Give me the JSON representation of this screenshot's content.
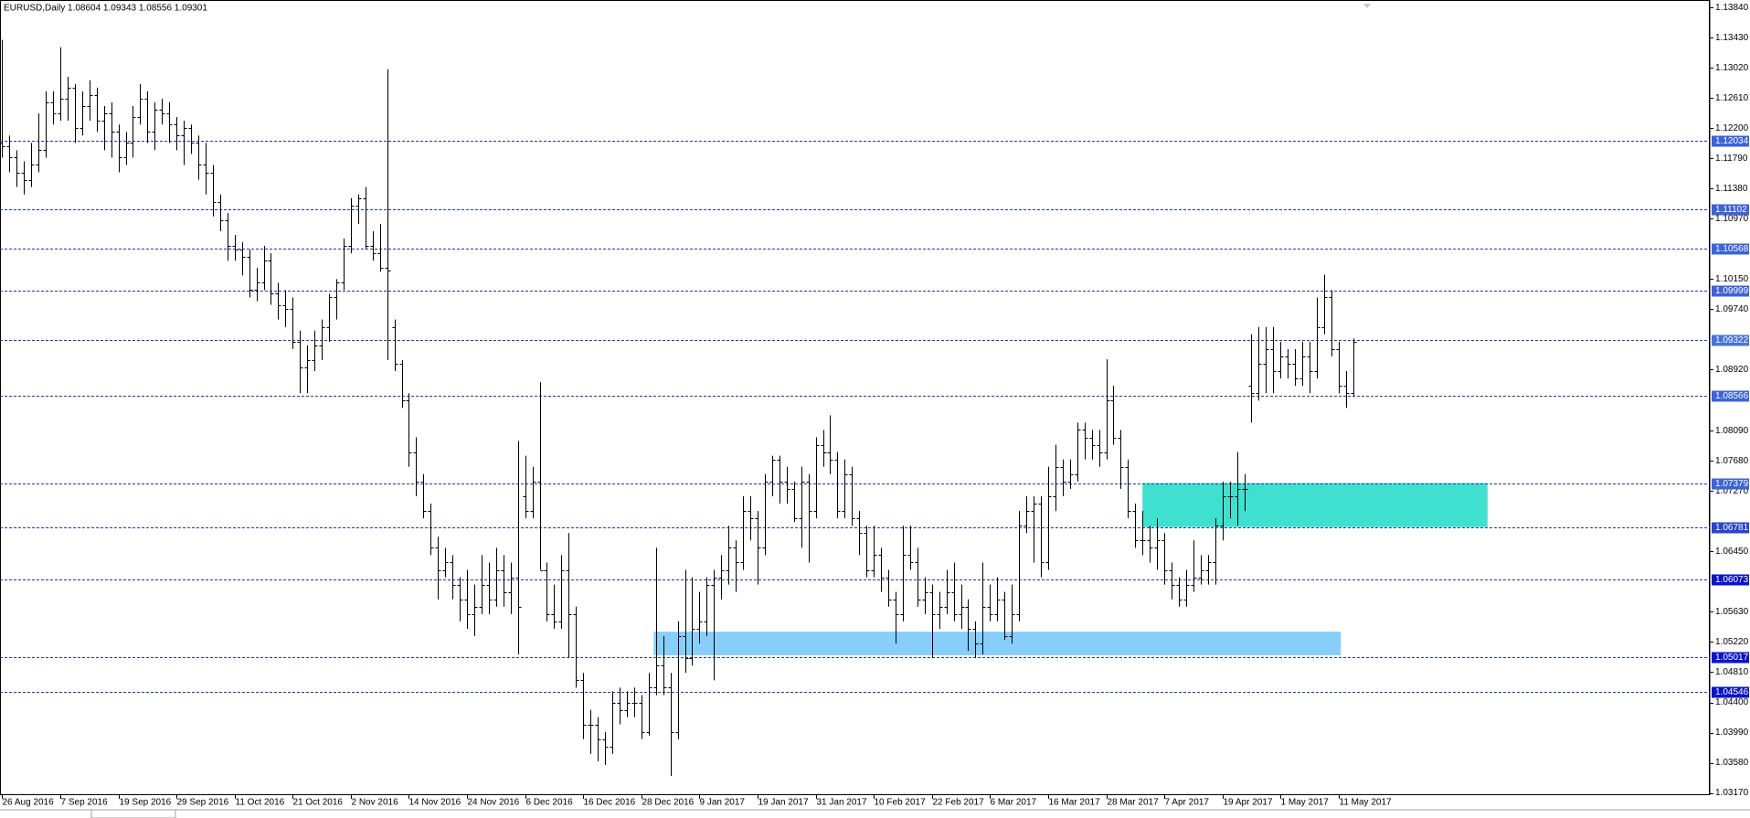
{
  "chart_data": {
    "type": "ohlc",
    "title": "EURUSD,Daily  1.08604 1.09343 1.08556 1.09301",
    "color": "#000000",
    "line_color": "#2a36a8",
    "values": [
      [
        1.12,
        1.134,
        1.118,
        1.1195
      ],
      [
        1.1195,
        1.121,
        1.116,
        1.118
      ],
      [
        1.118,
        1.119,
        1.114,
        1.116
      ],
      [
        1.116,
        1.1175,
        1.113,
        1.115
      ],
      [
        1.115,
        1.12,
        1.114,
        1.117
      ],
      [
        1.117,
        1.124,
        1.116,
        1.119
      ],
      [
        1.119,
        1.127,
        1.118,
        1.1255
      ],
      [
        1.1255,
        1.127,
        1.1225,
        1.124
      ],
      [
        1.124,
        1.133,
        1.123,
        1.126
      ],
      [
        1.126,
        1.129,
        1.123,
        1.1275
      ],
      [
        1.1275,
        1.128,
        1.12,
        1.122
      ],
      [
        1.122,
        1.127,
        1.121,
        1.125
      ],
      [
        1.125,
        1.1285,
        1.123,
        1.1265
      ],
      [
        1.1265,
        1.1275,
        1.1215,
        1.123
      ],
      [
        1.123,
        1.125,
        1.119,
        1.124
      ],
      [
        1.124,
        1.1255,
        1.118,
        1.1215
      ],
      [
        1.1215,
        1.1225,
        1.116,
        1.118
      ],
      [
        1.118,
        1.1215,
        1.117,
        1.12
      ],
      [
        1.12,
        1.125,
        1.118,
        1.1235
      ],
      [
        1.1235,
        1.128,
        1.1225,
        1.126
      ],
      [
        1.126,
        1.127,
        1.12,
        1.1215
      ],
      [
        1.1215,
        1.1255,
        1.119,
        1.1245
      ],
      [
        1.1245,
        1.126,
        1.1225,
        1.124
      ],
      [
        1.124,
        1.1255,
        1.12,
        1.1225
      ],
      [
        1.1225,
        1.1235,
        1.119,
        1.121
      ],
      [
        1.121,
        1.123,
        1.117,
        1.122
      ],
      [
        1.122,
        1.1225,
        1.1185,
        1.12
      ],
      [
        1.12,
        1.121,
        1.115,
        1.117
      ],
      [
        1.117,
        1.12,
        1.113,
        1.116
      ],
      [
        1.116,
        1.117,
        1.11,
        1.112
      ],
      [
        1.112,
        1.113,
        1.108,
        1.1095
      ],
      [
        1.1095,
        1.1105,
        1.104,
        1.106
      ],
      [
        1.106,
        1.1075,
        1.104,
        1.1055
      ],
      [
        1.1055,
        1.1065,
        1.102,
        1.1045
      ],
      [
        1.1045,
        1.1055,
        1.099,
        1.1
      ],
      [
        1.1,
        1.103,
        1.0985,
        1.101
      ],
      [
        1.101,
        1.106,
        1.1,
        1.104
      ],
      [
        1.104,
        1.105,
        1.098,
        1.0995
      ],
      [
        1.0995,
        1.101,
        1.096,
        1.098
      ],
      [
        1.098,
        1.1,
        1.095,
        1.0975
      ],
      [
        1.0975,
        1.099,
        1.092,
        1.093
      ],
      [
        1.093,
        1.0945,
        1.086,
        1.0895
      ],
      [
        1.0895,
        1.0925,
        1.086,
        1.0905
      ],
      [
        1.0905,
        1.0945,
        1.089,
        1.0925
      ],
      [
        1.0925,
        1.096,
        1.0905,
        1.095
      ],
      [
        1.095,
        1.0995,
        1.093,
        1.099
      ],
      [
        1.099,
        1.1015,
        1.096,
        1.101
      ],
      [
        1.101,
        1.107,
        1.1,
        1.106
      ],
      [
        1.106,
        1.1125,
        1.105,
        1.1115
      ],
      [
        1.1115,
        1.113,
        1.109,
        1.1125
      ],
      [
        1.1125,
        1.114,
        1.1055,
        1.106
      ],
      [
        1.106,
        1.108,
        1.104,
        1.105
      ],
      [
        1.105,
        1.109,
        1.1025,
        1.103
      ],
      [
        1.103,
        1.13,
        1.0905,
        1.1027
      ],
      [
        1.095,
        1.096,
        1.089,
        1.09
      ],
      [
        1.09,
        1.0905,
        1.084,
        1.085
      ],
      [
        1.085,
        1.086,
        1.076,
        1.078
      ],
      [
        1.078,
        1.08,
        1.072,
        1.074
      ],
      [
        1.074,
        1.075,
        1.069,
        1.07
      ],
      [
        1.07,
        1.071,
        1.064,
        1.065
      ],
      [
        1.065,
        1.0665,
        1.058,
        1.062
      ],
      [
        1.062,
        1.065,
        1.061,
        1.063
      ],
      [
        1.063,
        1.064,
        1.058,
        1.06
      ],
      [
        1.06,
        1.061,
        1.055,
        1.058
      ],
      [
        1.058,
        1.062,
        1.054,
        1.056
      ],
      [
        1.056,
        1.06,
        1.053,
        1.057
      ],
      [
        1.057,
        1.064,
        1.056,
        1.06
      ],
      [
        1.06,
        1.063,
        1.056,
        1.058
      ],
      [
        1.058,
        1.065,
        1.057,
        1.062
      ],
      [
        1.062,
        1.064,
        1.057,
        1.059
      ],
      [
        1.059,
        1.063,
        1.056,
        1.061
      ],
      [
        1.061,
        1.0795,
        1.0505,
        1.057
      ],
      [
        1.072,
        1.0775,
        1.069,
        1.07
      ],
      [
        1.07,
        1.076,
        1.069,
        1.074
      ],
      [
        1.074,
        1.0875,
        1.062,
        1.062
      ],
      [
        1.062,
        1.063,
        1.055,
        1.056
      ],
      [
        1.056,
        1.06,
        1.054,
        1.055
      ],
      [
        1.055,
        1.064,
        1.054,
        1.062
      ],
      [
        1.062,
        1.067,
        1.05,
        1.056
      ],
      [
        1.056,
        1.057,
        1.046,
        1.047
      ],
      [
        1.047,
        1.048,
        1.039,
        1.041
      ],
      [
        1.041,
        1.043,
        1.037,
        1.041
      ],
      [
        1.041,
        1.042,
        1.036,
        1.039
      ],
      [
        1.039,
        1.04,
        1.0355,
        1.038
      ],
      [
        1.038,
        1.0455,
        1.037,
        1.044
      ],
      [
        1.044,
        1.046,
        1.041,
        1.043
      ],
      [
        1.043,
        1.0455,
        1.042,
        1.044
      ],
      [
        1.044,
        1.046,
        1.042,
        1.044
      ],
      [
        1.044,
        1.045,
        1.039,
        1.04
      ],
      [
        1.04,
        1.048,
        1.0395,
        1.046
      ],
      [
        1.046,
        1.065,
        1.045,
        1.049
      ],
      [
        1.049,
        1.053,
        1.045,
        1.046
      ],
      [
        1.046,
        1.048,
        1.034,
        1.04
      ],
      [
        1.04,
        1.055,
        1.039,
        1.053
      ],
      [
        1.053,
        1.062,
        1.048,
        1.05
      ],
      [
        1.05,
        1.061,
        1.049,
        1.054
      ],
      [
        1.054,
        1.059,
        1.052,
        1.055
      ],
      [
        1.055,
        1.061,
        1.053,
        1.06
      ],
      [
        1.06,
        1.062,
        1.047,
        1.061
      ],
      [
        1.061,
        1.064,
        1.058,
        1.062
      ],
      [
        1.062,
        1.068,
        1.06,
        1.065
      ],
      [
        1.065,
        1.066,
        1.059,
        1.063
      ],
      [
        1.063,
        1.072,
        1.062,
        1.07
      ],
      [
        1.07,
        1.072,
        1.066,
        1.069
      ],
      [
        1.069,
        1.07,
        1.06,
        1.065
      ],
      [
        1.065,
        1.075,
        1.064,
        1.074
      ],
      [
        1.074,
        1.0775,
        1.072,
        1.077
      ],
      [
        1.077,
        1.0775,
        1.071,
        1.074
      ],
      [
        1.074,
        1.076,
        1.071,
        1.073
      ],
      [
        1.073,
        1.074,
        1.0685,
        1.069
      ],
      [
        1.069,
        1.076,
        1.065,
        1.074
      ],
      [
        1.074,
        1.075,
        1.063,
        1.07
      ],
      [
        1.07,
        1.08,
        1.069,
        1.079
      ],
      [
        1.079,
        1.081,
        1.076,
        1.078
      ],
      [
        1.078,
        1.083,
        1.075,
        1.077
      ],
      [
        1.077,
        1.078,
        1.069,
        1.07
      ],
      [
        1.07,
        1.077,
        1.069,
        1.075
      ],
      [
        1.075,
        1.076,
        1.068,
        1.069
      ],
      [
        1.069,
        1.07,
        1.064,
        1.067
      ],
      [
        1.067,
        1.068,
        1.061,
        1.062
      ],
      [
        1.062,
        1.068,
        1.061,
        1.064
      ],
      [
        1.064,
        1.065,
        1.059,
        1.061
      ],
      [
        1.061,
        1.062,
        1.057,
        1.058
      ],
      [
        1.058,
        1.059,
        1.052,
        1.056
      ],
      [
        1.056,
        1.068,
        1.055,
        1.064
      ],
      [
        1.064,
        1.068,
        1.062,
        1.063
      ],
      [
        1.063,
        1.065,
        1.057,
        1.058
      ],
      [
        1.058,
        1.061,
        1.056,
        1.059
      ],
      [
        1.059,
        1.06,
        1.05,
        1.056
      ],
      [
        1.056,
        1.059,
        1.054,
        1.057
      ],
      [
        1.057,
        1.062,
        1.056,
        1.059
      ],
      [
        1.059,
        1.063,
        1.055,
        1.056
      ],
      [
        1.056,
        1.06,
        1.054,
        1.057
      ],
      [
        1.057,
        1.058,
        1.051,
        1.054
      ],
      [
        1.054,
        1.055,
        1.05,
        1.052
      ],
      [
        1.052,
        1.063,
        1.0505,
        1.057
      ],
      [
        1.057,
        1.06,
        1.055,
        1.056
      ],
      [
        1.056,
        1.061,
        1.055,
        1.058
      ],
      [
        1.058,
        1.059,
        1.0525,
        1.053
      ],
      [
        1.053,
        1.06,
        1.052,
        1.056
      ],
      [
        1.056,
        1.07,
        1.055,
        1.068
      ],
      [
        1.068,
        1.072,
        1.067,
        1.07
      ],
      [
        1.07,
        1.072,
        1.063,
        1.071
      ],
      [
        1.071,
        1.072,
        1.061,
        1.063
      ],
      [
        1.063,
        1.076,
        1.062,
        1.072
      ],
      [
        1.072,
        1.079,
        1.07,
        1.076
      ],
      [
        1.076,
        1.077,
        1.072,
        1.074
      ],
      [
        1.074,
        1.077,
        1.073,
        1.075
      ],
      [
        1.075,
        1.082,
        1.074,
        1.081
      ],
      [
        1.081,
        1.082,
        1.077,
        1.08
      ],
      [
        1.08,
        1.081,
        1.077,
        1.079
      ],
      [
        1.079,
        1.081,
        1.076,
        1.078
      ],
      [
        1.078,
        1.0906,
        1.077,
        1.085
      ],
      [
        1.085,
        1.087,
        1.079,
        1.08
      ],
      [
        1.08,
        1.081,
        1.073,
        1.076
      ],
      [
        1.076,
        1.077,
        1.069,
        1.07
      ],
      [
        1.07,
        1.071,
        1.065,
        1.066
      ],
      [
        1.066,
        1.07,
        1.064,
        1.066
      ],
      [
        1.066,
        1.068,
        1.063,
        1.065
      ],
      [
        1.065,
        1.069,
        1.062,
        1.066
      ],
      [
        1.066,
        1.067,
        1.06,
        1.062
      ],
      [
        1.062,
        1.063,
        1.058,
        1.06
      ],
      [
        1.06,
        1.061,
        1.057,
        1.058
      ],
      [
        1.058,
        1.062,
        1.057,
        1.06
      ],
      [
        1.06,
        1.066,
        1.059,
        1.061
      ],
      [
        1.061,
        1.064,
        1.06,
        1.062
      ],
      [
        1.062,
        1.064,
        1.06,
        1.063
      ],
      [
        1.063,
        1.069,
        1.06,
        1.068
      ],
      [
        1.068,
        1.074,
        1.066,
        1.072
      ],
      [
        1.072,
        1.074,
        1.069,
        1.072
      ],
      [
        1.072,
        1.078,
        1.068,
        1.073
      ],
      [
        1.073,
        1.075,
        1.07,
        1.073
      ],
      [
        1.087,
        1.094,
        1.082,
        1.086
      ],
      [
        1.086,
        1.095,
        1.085,
        1.09
      ],
      [
        1.09,
        1.095,
        1.086,
        1.092
      ],
      [
        1.092,
        1.095,
        1.086,
        1.089
      ],
      [
        1.089,
        1.093,
        1.088,
        1.091
      ],
      [
        1.091,
        1.092,
        1.088,
        1.09
      ],
      [
        1.09,
        1.092,
        1.087,
        1.088
      ],
      [
        1.088,
        1.093,
        1.087,
        1.091
      ],
      [
        1.091,
        1.093,
        1.086,
        1.089
      ],
      [
        1.089,
        1.099,
        1.088,
        1.095
      ],
      [
        1.095,
        1.1021,
        1.094,
        1.099
      ],
      [
        1.099,
        1.1,
        1.091,
        1.092
      ],
      [
        1.092,
        1.093,
        1.086,
        1.087
      ],
      [
        1.087,
        1.089,
        1.084,
        1.086
      ],
      [
        1.08604,
        1.09343,
        1.08556,
        1.09301
      ]
    ],
    "xlim": [
      -0.3,
      235.1
    ],
    "xticks": [
      {
        "value": 0,
        "label": "26 Aug 2016"
      },
      {
        "value": 8,
        "label": "7 Sep 2016"
      },
      {
        "value": 16,
        "label": "19 Sep 2016"
      },
      {
        "value": 24,
        "label": "29 Sep 2016"
      },
      {
        "value": 32,
        "label": "11 Oct 2016"
      },
      {
        "value": 40,
        "label": "21 Oct 2016"
      },
      {
        "value": 48,
        "label": "2 Nov 2016"
      },
      {
        "value": 56,
        "label": "14 Nov 2016"
      },
      {
        "value": 64,
        "label": "24 Nov 2016"
      },
      {
        "value": 72,
        "label": "6 Dec 2016"
      },
      {
        "value": 80,
        "label": "16 Dec 2016"
      },
      {
        "value": 88,
        "label": "28 Dec 2016"
      },
      {
        "value": 96,
        "label": "9 Jan 2017"
      },
      {
        "value": 104,
        "label": "19 Jan 2017"
      },
      {
        "value": 112,
        "label": "31 Jan 2017"
      },
      {
        "value": 120,
        "label": "10 Feb 2017"
      },
      {
        "value": 128,
        "label": "22 Feb 2017"
      },
      {
        "value": 136,
        "label": "6 Mar 2017"
      },
      {
        "value": 144,
        "label": "16 Mar 2017"
      },
      {
        "value": 152,
        "label": "28 Mar 2017"
      },
      {
        "value": 160,
        "label": "7 Apr 2017"
      },
      {
        "value": 168,
        "label": "19 Apr 2017"
      },
      {
        "value": 176,
        "label": "1 May 2017"
      },
      {
        "value": 184,
        "label": "11 May 2017"
      }
    ],
    "ylim": [
      1.0314,
      1.13916
    ],
    "yticks": [
      {
        "value": 1.1384,
        "label": "1.13840"
      },
      {
        "value": 1.1343,
        "label": "1.13430"
      },
      {
        "value": 1.1302,
        "label": "1.13020"
      },
      {
        "value": 1.1261,
        "label": "1.12610"
      },
      {
        "value": 1.122,
        "label": "1.12200"
      },
      {
        "value": 1.1179,
        "label": "1.11790"
      },
      {
        "value": 1.1138,
        "label": "1.11380"
      },
      {
        "value": 1.1097,
        "label": "1.10970"
      },
      {
        "value": 1.1015,
        "label": "1.10150"
      },
      {
        "value": 1.0974,
        "label": "1.09740"
      },
      {
        "value": 1.0892,
        "label": "1.08920"
      },
      {
        "value": 1.0809,
        "label": "1.08090"
      },
      {
        "value": 1.0768,
        "label": "1.07680"
      },
      {
        "value": 1.0727,
        "label": "1.07270"
      },
      {
        "value": 1.0645,
        "label": "1.06450"
      },
      {
        "value": 1.0563,
        "label": "1.05630"
      },
      {
        "value": 1.0522,
        "label": "1.05220"
      },
      {
        "value": 1.0481,
        "label": "1.04810"
      },
      {
        "value": 1.044,
        "label": "1.04400"
      },
      {
        "value": 1.0399,
        "label": "1.03990"
      },
      {
        "value": 1.0358,
        "label": "1.03580"
      },
      {
        "value": 1.0317,
        "label": "1.03170"
      }
    ],
    "levels": [
      {
        "value": 1.12034,
        "color": "#3d63d4"
      },
      {
        "value": 1.11102,
        "color": "#3d63d4"
      },
      {
        "value": 1.10568,
        "color": "#3d63d4"
      },
      {
        "value": 1.09999,
        "color": "#3d63d4"
      },
      {
        "value": 1.09322,
        "color": "#4a73d8"
      },
      {
        "value": 1.08566,
        "color": "#3d63d4"
      },
      {
        "value": 1.07379,
        "color": "#3d63d4"
      },
      {
        "value": 1.06781,
        "color": "#2a45c8"
      },
      {
        "value": 1.06073,
        "color": "#0a14c8"
      },
      {
        "value": 1.05017,
        "color": "#0a14c8"
      },
      {
        "value": 1.04546,
        "color": "#0a14c8"
      }
    ],
    "zones": [
      {
        "low": 1.06781,
        "high": 1.07379,
        "color": "#40e0d0"
      },
      {
        "low": 1.0504,
        "high": 1.0536,
        "color": "#87cefa"
      }
    ]
  }
}
